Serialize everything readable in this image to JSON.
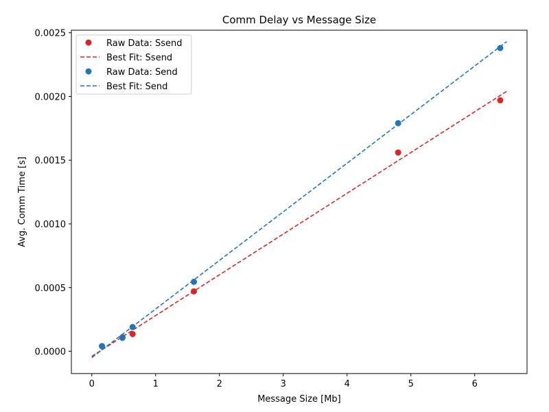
{
  "chart_data": {
    "type": "scatter",
    "title": "Comm Delay vs Message Size",
    "xlabel": "Message Size [Mb]",
    "ylabel": "Avg. Comm Time [s]",
    "xlim": [
      -0.32,
      6.82
    ],
    "ylim": [
      -0.000175,
      0.00252
    ],
    "xticks": [
      0,
      1,
      2,
      3,
      4,
      5,
      6
    ],
    "xtick_labels": [
      "0",
      "1",
      "2",
      "3",
      "4",
      "5",
      "6"
    ],
    "yticks": [
      0,
      0.0005,
      0.001,
      0.0015,
      0.002,
      0.0025
    ],
    "ytick_labels": [
      "0.0000",
      "0.0005",
      "0.0010",
      "0.0015",
      "0.0020",
      "0.0025"
    ],
    "grid": false,
    "legend_position": "top-left",
    "legend": [
      "Raw Data: Ssend",
      "Best Fit: Ssend",
      "Raw Data: Send",
      "Best Fit: Send"
    ],
    "series": [
      {
        "name": "Raw Data: Ssend",
        "kind": "scatter",
        "color": "#d62728",
        "x": [
          0.16,
          0.48,
          0.64,
          1.6,
          4.8,
          6.4
        ],
        "y": [
          4e-05,
          0.00011,
          0.000135,
          0.00047,
          0.00156,
          0.00197
        ]
      },
      {
        "name": "Best Fit: Ssend",
        "kind": "line",
        "style": "dashed",
        "color": "#d62728",
        "x": [
          0,
          6.5
        ],
        "y": [
          -4e-05,
          0.00204
        ]
      },
      {
        "name": "Raw Data: Send",
        "kind": "scatter",
        "color": "#1f77b4",
        "x": [
          0.16,
          0.48,
          0.64,
          1.6,
          4.8,
          6.4
        ],
        "y": [
          4e-05,
          0.000105,
          0.00019,
          0.000545,
          0.00179,
          0.00238
        ]
      },
      {
        "name": "Best Fit: Send",
        "kind": "line",
        "style": "dashed",
        "color": "#1f77b4",
        "x": [
          0,
          6.5
        ],
        "y": [
          -5e-05,
          0.00243
        ]
      }
    ]
  }
}
